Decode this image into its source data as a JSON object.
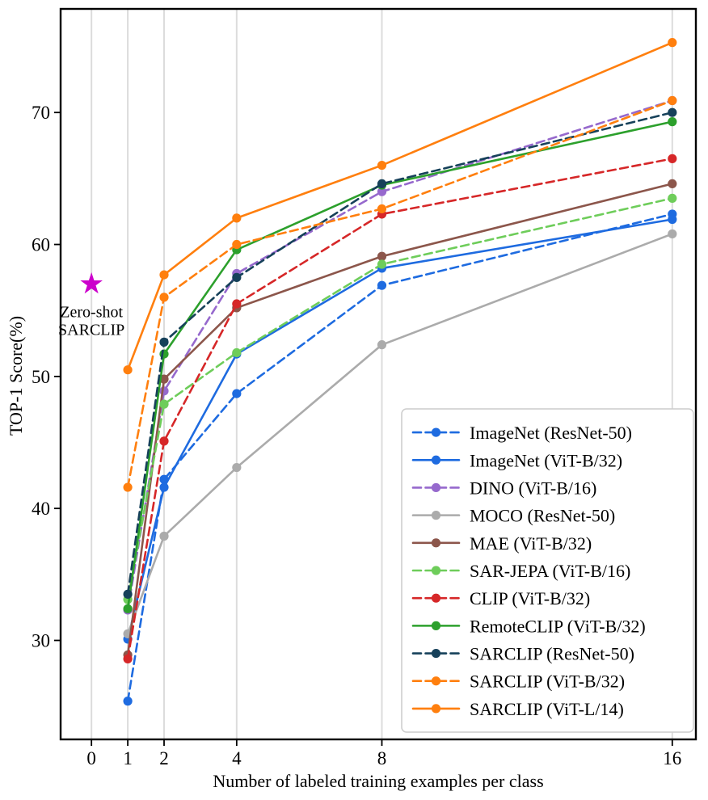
{
  "chart_data": {
    "type": "line",
    "title": "",
    "xlabel": "Number of labeled training examples per class",
    "ylabel": "TOP-1 Score(%)",
    "x": [
      1,
      2,
      4,
      8,
      16
    ],
    "x_ticks": [
      0,
      1,
      2,
      4,
      8,
      16
    ],
    "y_ticks": [
      30,
      40,
      50,
      60,
      70
    ],
    "xlim": [
      -0.85,
      16.65
    ],
    "ylim": [
      22.5,
      77.85
    ],
    "grid": "vertical-gridlines-only",
    "grid_color": "#dcdcdc",
    "legend_position": "lower right",
    "series": [
      {
        "name": "ImageNet (ResNet-50)",
        "color": "#1e6be0",
        "style": "dashed",
        "values": [
          25.4,
          42.2,
          48.7,
          56.9,
          62.3
        ]
      },
      {
        "name": "ImageNet (ViT-B/32)",
        "color": "#1e6be0",
        "style": "solid",
        "values": [
          30.1,
          41.6,
          51.7,
          58.2,
          61.9
        ]
      },
      {
        "name": "DINO (ViT-B/16)",
        "color": "#9669cd",
        "style": "dashed",
        "values": [
          32.3,
          48.9,
          57.8,
          64.0,
          70.9
        ]
      },
      {
        "name": "MOCO (ResNet-50)",
        "color": "#ababab",
        "style": "solid",
        "values": [
          30.5,
          37.9,
          43.1,
          52.4,
          60.8
        ]
      },
      {
        "name": "MAE (ViT-B/32)",
        "color": "#8c564b",
        "style": "solid",
        "values": [
          28.9,
          49.8,
          55.2,
          59.1,
          64.6
        ]
      },
      {
        "name": "SAR-JEPA (ViT-B/16)",
        "color": "#6ecd5a",
        "style": "dashed",
        "values": [
          33.1,
          47.9,
          51.8,
          58.5,
          63.5
        ]
      },
      {
        "name": "CLIP (ViT-B/32)",
        "color": "#d62728",
        "style": "dashed",
        "values": [
          28.6,
          45.1,
          55.5,
          62.3,
          66.5
        ]
      },
      {
        "name": "RemoteCLIP (ViT-B/32)",
        "color": "#2ca02c",
        "style": "solid",
        "values": [
          32.4,
          51.7,
          59.6,
          64.5,
          69.3
        ]
      },
      {
        "name": "SARCLIP (ResNet-50)",
        "color": "#16415a",
        "style": "dashed",
        "values": [
          33.5,
          52.6,
          57.5,
          64.6,
          70.0
        ]
      },
      {
        "name": "SARCLIP (ViT-B/32)",
        "color": "#ff7f0e",
        "style": "dashed",
        "values": [
          41.6,
          56.0,
          60.0,
          62.7,
          70.9
        ]
      },
      {
        "name": "SARCLIP (ViT-L/14)",
        "color": "#ff7f0e",
        "style": "solid",
        "values": [
          50.5,
          57.7,
          62.0,
          66.0,
          75.3
        ]
      }
    ],
    "annotation": {
      "marker": "star",
      "x": 0,
      "y": 57.0,
      "color": "#cc00cc",
      "label_line1": "Zero-shot",
      "label_line2": "SARCLIP"
    }
  }
}
